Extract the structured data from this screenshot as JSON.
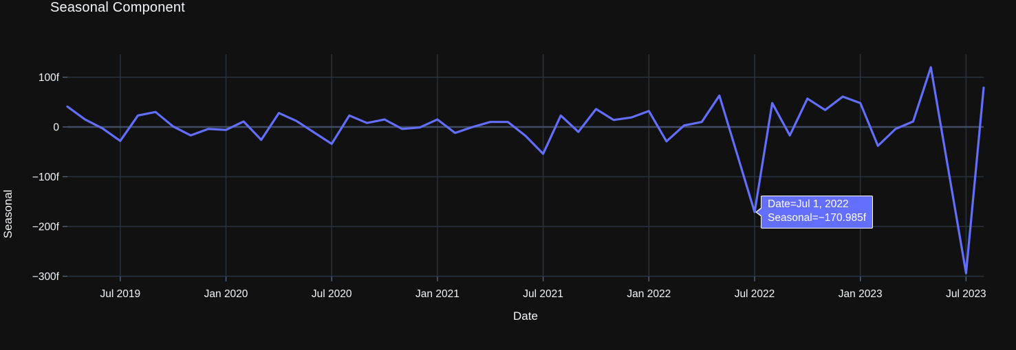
{
  "chart_data": {
    "type": "line",
    "title": "Seasonal Component",
    "xlabel": "Date",
    "ylabel": "Seasonal",
    "x": [
      "Apr 2019",
      "May 2019",
      "Jun 2019",
      "Jul 2019",
      "Aug 2019",
      "Sep 2019",
      "Oct 2019",
      "Nov 2019",
      "Dec 2019",
      "Jan 2020",
      "Feb 2020",
      "Mar 2020",
      "Apr 2020",
      "May 2020",
      "Jun 2020",
      "Jul 2020",
      "Aug 2020",
      "Sep 2020",
      "Oct 2020",
      "Nov 2020",
      "Dec 2020",
      "Jan 2021",
      "Feb 2021",
      "Mar 2021",
      "Apr 2021",
      "May 2021",
      "Jun 2021",
      "Jul 2021",
      "Aug 2021",
      "Sep 2021",
      "Oct 2021",
      "Nov 2021",
      "Dec 2021",
      "Jan 2022",
      "Feb 2022",
      "Mar 2022",
      "Apr 2022",
      "May 2022",
      "Jun 2022",
      "Jul 2022",
      "Aug 2022",
      "Sep 2022",
      "Oct 2022",
      "Nov 2022",
      "Dec 2022",
      "Jan 2023",
      "Feb 2023",
      "Mar 2023",
      "Apr 2023",
      "May 2023",
      "Jun 2023",
      "Jul 2023",
      "Aug 2023"
    ],
    "values": [
      41,
      15,
      -3,
      -28,
      23,
      30,
      1,
      -17,
      -4,
      -6,
      11,
      -26,
      28,
      12,
      -11,
      -34,
      23,
      8,
      15,
      -4,
      -1,
      15,
      -12,
      0,
      10,
      10,
      -18,
      -54,
      23,
      -10,
      36,
      14,
      19,
      32,
      -29,
      3,
      10,
      63,
      -54,
      -170.985,
      48,
      -17,
      57,
      34,
      61,
      48,
      -38,
      -4,
      11,
      120,
      -87,
      -294,
      79
    ],
    "x_tick_indices": [
      3,
      9,
      15,
      21,
      27,
      33,
      39,
      45,
      51
    ],
    "x_tick_labels": [
      "Jul 2019",
      "Jan 2020",
      "Jul 2020",
      "Jan 2021",
      "Jul 2021",
      "Jan 2022",
      "Jul 2022",
      "Jan 2023",
      "Jul 2023"
    ],
    "y_ticks": [
      100,
      0,
      -100,
      -200,
      -300
    ],
    "y_tick_labels": [
      "100f",
      "0",
      "−100f",
      "−200f",
      "−300f"
    ],
    "ylim": [
      -300.7,
      146.2
    ],
    "grid": true,
    "legend": false,
    "line_color": "#636efa",
    "bg_color": "#111111",
    "grid_color": "#283442",
    "zero_line_color": "#3f4c63",
    "tick_mark_color": "#506784",
    "text_color": "#f2f5fa"
  },
  "tooltip": {
    "line1": "Date=Jul 1, 2022",
    "line2": "Seasonal=−170.985f",
    "point_index": 39,
    "point_value": -170.985,
    "bg_color": "#636efa",
    "border_color": "#ffffff"
  }
}
